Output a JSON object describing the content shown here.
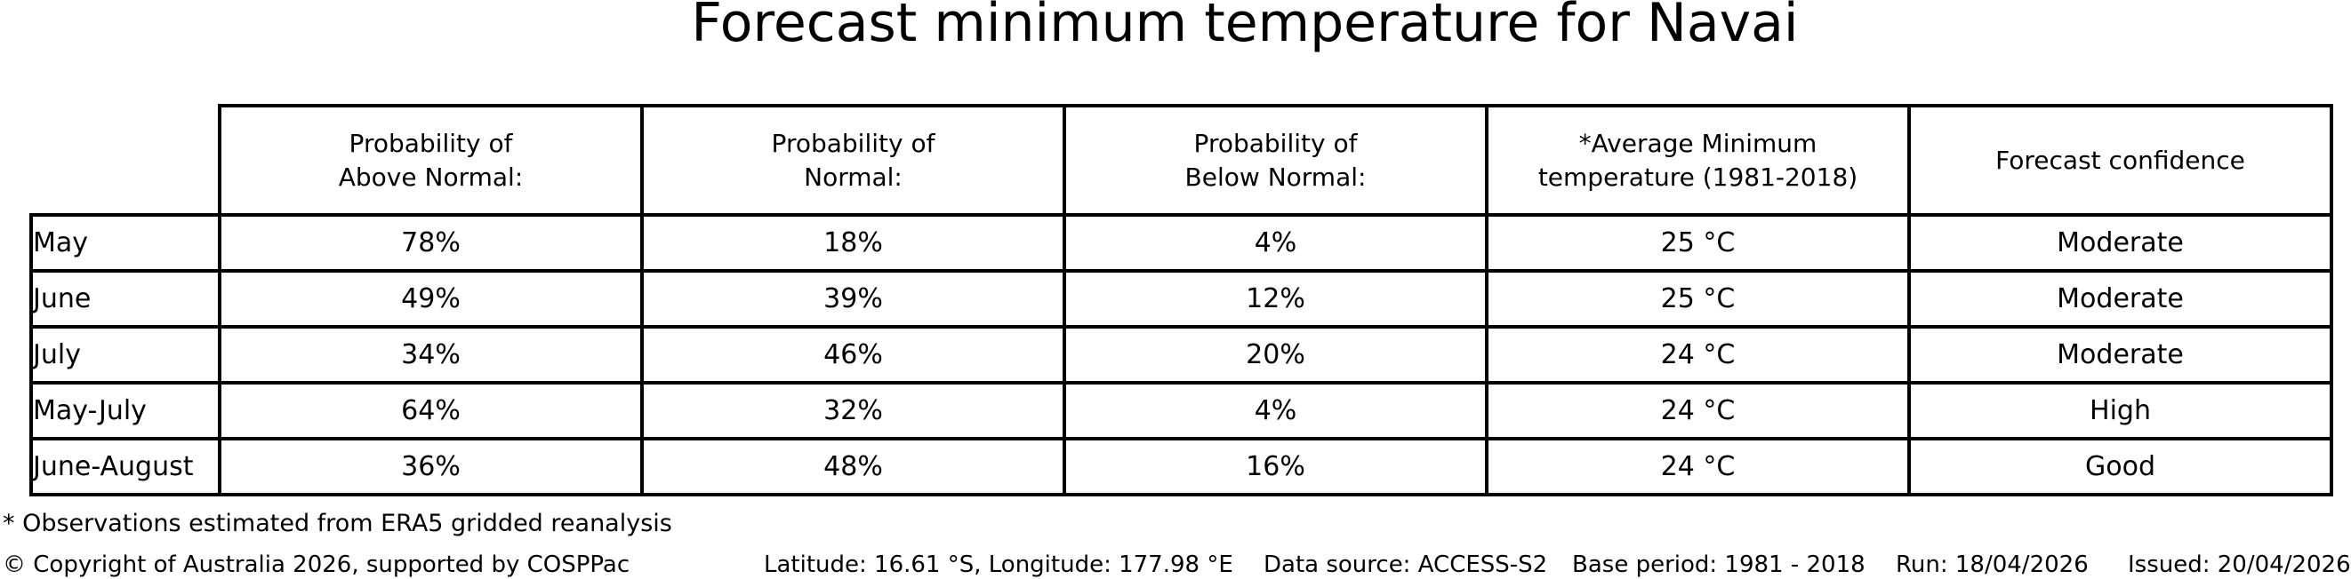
{
  "title": "Forecast minimum temperature for Navai",
  "chart_data": {
    "type": "table",
    "title": "Forecast minimum temperature for Navai",
    "columns": [
      {
        "lines": [
          "Probability of",
          "Above Normal:"
        ]
      },
      {
        "lines": [
          "Probability of",
          "Normal:"
        ]
      },
      {
        "lines": [
          "Probability of",
          "Below Normal:"
        ]
      },
      {
        "lines": [
          "*Average Minimum",
          "temperature (1981-2018)"
        ]
      },
      {
        "lines": [
          "Forecast confidence"
        ]
      }
    ],
    "rows": [
      {
        "label": "May",
        "cells": [
          "78%",
          "18%",
          "4%",
          "25 °C",
          "Moderate"
        ]
      },
      {
        "label": "June",
        "cells": [
          "49%",
          "39%",
          "12%",
          "25 °C",
          "Moderate"
        ]
      },
      {
        "label": "July",
        "cells": [
          "34%",
          "46%",
          "20%",
          "24 °C",
          "Moderate"
        ]
      },
      {
        "label": "May-July",
        "cells": [
          "64%",
          "32%",
          "4%",
          "24 °C",
          "High"
        ]
      },
      {
        "label": "June-August",
        "cells": [
          "36%",
          "48%",
          "16%",
          "24 °C",
          "Good"
        ]
      }
    ],
    "footnote": "* Observations estimated from ERA5 gridded reanalysis",
    "footer": {
      "copyright": "© Copyright of Australia 2026, supported by COSPPac",
      "location": "Latitude: 16.61 °S, Longitude: 177.98 °E",
      "data_source": "Data source: ACCESS-S2",
      "base_period": "Base period: 1981 - 2018",
      "run": "Run: 18/04/2026",
      "issued": "Issued: 20/04/2026"
    }
  },
  "colors": {
    "text": "#000000",
    "background": "#ffffff",
    "border": "#000000"
  }
}
